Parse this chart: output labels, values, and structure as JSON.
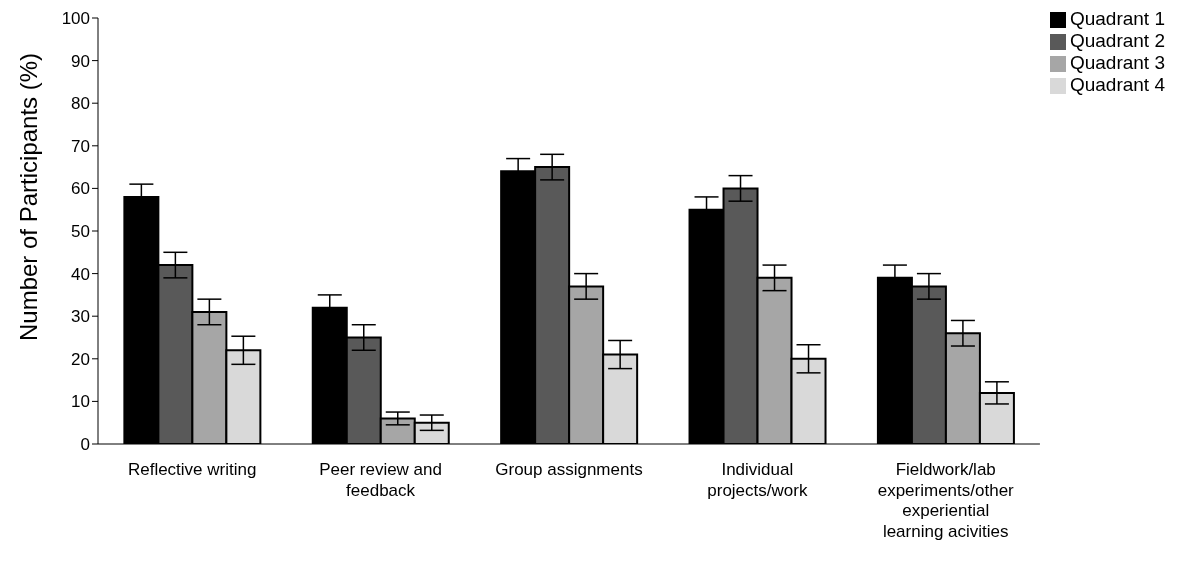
{
  "chart_data": {
    "type": "bar",
    "ylabel": "Number of Participants (%)",
    "categories": [
      "Reflective writing",
      "Peer review and feedback",
      "Group assignments",
      "Individual projects/work",
      "Fieldwork/lab experiments/other experiential learning acivities"
    ],
    "series": [
      {
        "name": "Quadrant 1",
        "color": "#000000",
        "values": [
          58,
          32,
          64,
          55,
          39
        ],
        "errors": [
          3,
          3,
          3,
          3,
          3
        ]
      },
      {
        "name": "Quadrant 2",
        "color": "#595959",
        "values": [
          42,
          25,
          65,
          60,
          37
        ],
        "errors": [
          3,
          3,
          3,
          3,
          3
        ]
      },
      {
        "name": "Quadrant 3",
        "color": "#a6a6a6",
        "values": [
          31,
          6,
          37,
          39,
          26
        ],
        "errors": [
          3,
          1.5,
          3,
          3,
          3
        ]
      },
      {
        "name": "Quadrant 4",
        "color": "#d9d9d9",
        "values": [
          22,
          5,
          21,
          20,
          12
        ],
        "errors": [
          3.3,
          1.8,
          3.3,
          3.3,
          2.6
        ]
      }
    ],
    "ylim": [
      0,
      100
    ],
    "yticks": [
      0,
      10,
      20,
      30,
      40,
      50,
      60,
      70,
      80,
      90,
      100
    ],
    "grid": false,
    "legend": "top right"
  }
}
